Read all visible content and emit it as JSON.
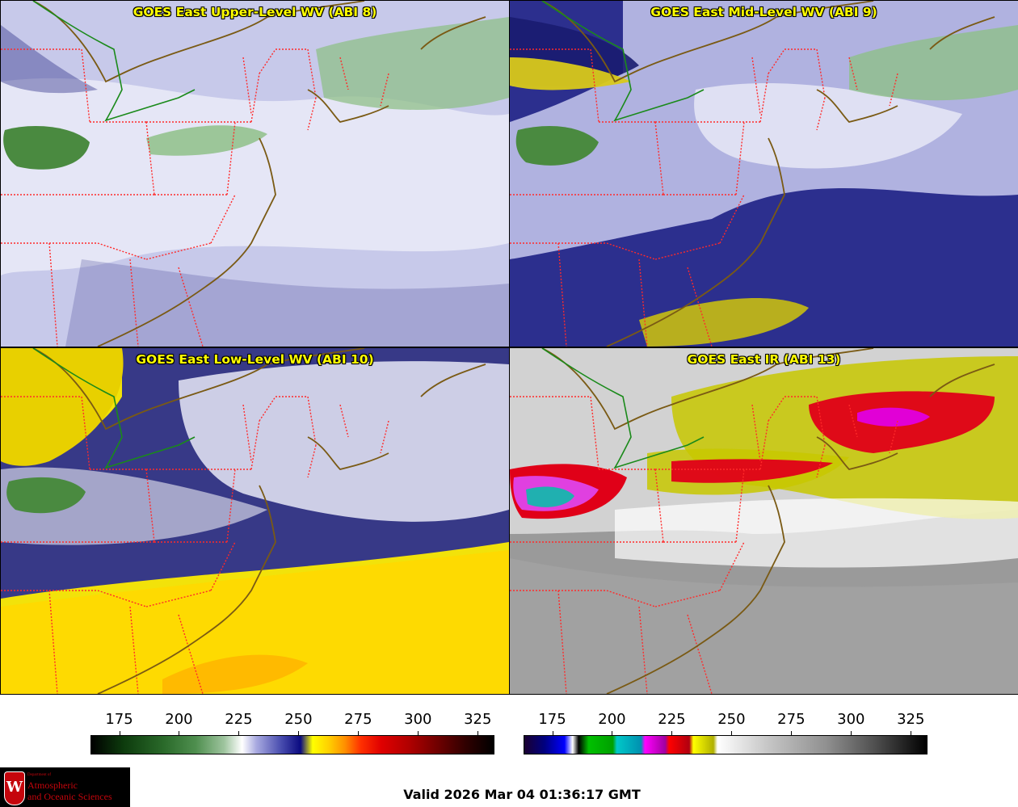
{
  "panels": [
    {
      "title": "GOES East Upper-Level WV (ABI 8)",
      "style": "wv_upper"
    },
    {
      "title": "GOES East Mid-Level WV (ABI 9)",
      "style": "wv_mid"
    },
    {
      "title": "GOES East Low-Level WV (ABI 10)",
      "style": "wv_low"
    },
    {
      "title": "GOES East IR (ABI 13)",
      "style": "ir"
    }
  ],
  "colorbars": {
    "left": {
      "ticks": [
        "175",
        "200",
        "225",
        "250",
        "275",
        "300",
        "325"
      ],
      "range": [
        163,
        332
      ]
    },
    "right": {
      "ticks": [
        "175",
        "200",
        "225",
        "250",
        "275",
        "300",
        "325"
      ],
      "range": [
        163,
        332
      ]
    }
  },
  "footer": {
    "valid": "Valid 2026 Mar 04 01:36:17 GMT"
  },
  "logo": {
    "letter": "W",
    "dept": "Department of",
    "line1": "Atmospheric",
    "line2": "and Oceanic Sciences"
  },
  "colors": {
    "state_border": "#ff2a2a",
    "coastline": "#7a5a14",
    "intl_border": "#1a8a1a",
    "title": "#ffff00"
  }
}
